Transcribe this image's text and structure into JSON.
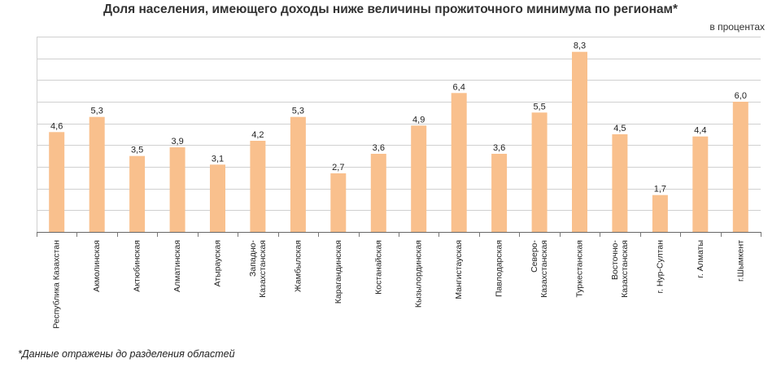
{
  "chart_data": {
    "type": "bar",
    "title": "Доля населения, имеющего доходы ниже величины прожиточного минимума по регионам*",
    "unit_label": "в процентах",
    "footnote": "*Данные отражены до разделения областей",
    "categories": [
      "Республика Казахстан",
      "Акмолинская",
      "Актюбинская",
      "Алматинская",
      "Атырауская",
      "Западно-Казахстанская",
      "Жамбылская",
      "Карагандинская",
      "Костанайская",
      "Кызылординская",
      "Мангистауская",
      "Павлодарская",
      "Северо-Казахстанская",
      "Туркестанская",
      "Восточно-Казахстанская",
      "г. Нур-Султан",
      "г. Алматы",
      "г.Шымкент"
    ],
    "category_lines": [
      [
        "Республика Казахстан"
      ],
      [
        "Акмолинская"
      ],
      [
        "Актюбинская"
      ],
      [
        "Алматинская"
      ],
      [
        "Атырауская"
      ],
      [
        "Западно-",
        "Казахстанская"
      ],
      [
        "Жамбылская"
      ],
      [
        "Карагандинская"
      ],
      [
        "Костанайская"
      ],
      [
        "Кызылординская"
      ],
      [
        "Мангистауская"
      ],
      [
        "Павлодарская"
      ],
      [
        "Северо-",
        "Казахстанская"
      ],
      [
        "Туркестанская"
      ],
      [
        "Восточно-",
        "Казахстанская"
      ],
      [
        "г. Нур-Султан"
      ],
      [
        "г. Алматы"
      ],
      [
        "г.Шымкент"
      ]
    ],
    "values": [
      4.6,
      5.3,
      3.5,
      3.9,
      3.1,
      4.2,
      5.3,
      2.7,
      3.6,
      4.9,
      6.4,
      3.6,
      5.5,
      8.3,
      4.5,
      1.7,
      4.4,
      6.0
    ],
    "value_labels": [
      "4,6",
      "5,3",
      "3,5",
      "3,9",
      "3,1",
      "4,2",
      "5,3",
      "2,7",
      "3,6",
      "4,9",
      "6,4",
      "3,6",
      "5,5",
      "8,3",
      "4,5",
      "1,7",
      "4,4",
      "6,0"
    ],
    "ylim": [
      0,
      9
    ],
    "ygrid_step": 1,
    "grid": true,
    "bar_color": "#f9c08d"
  }
}
